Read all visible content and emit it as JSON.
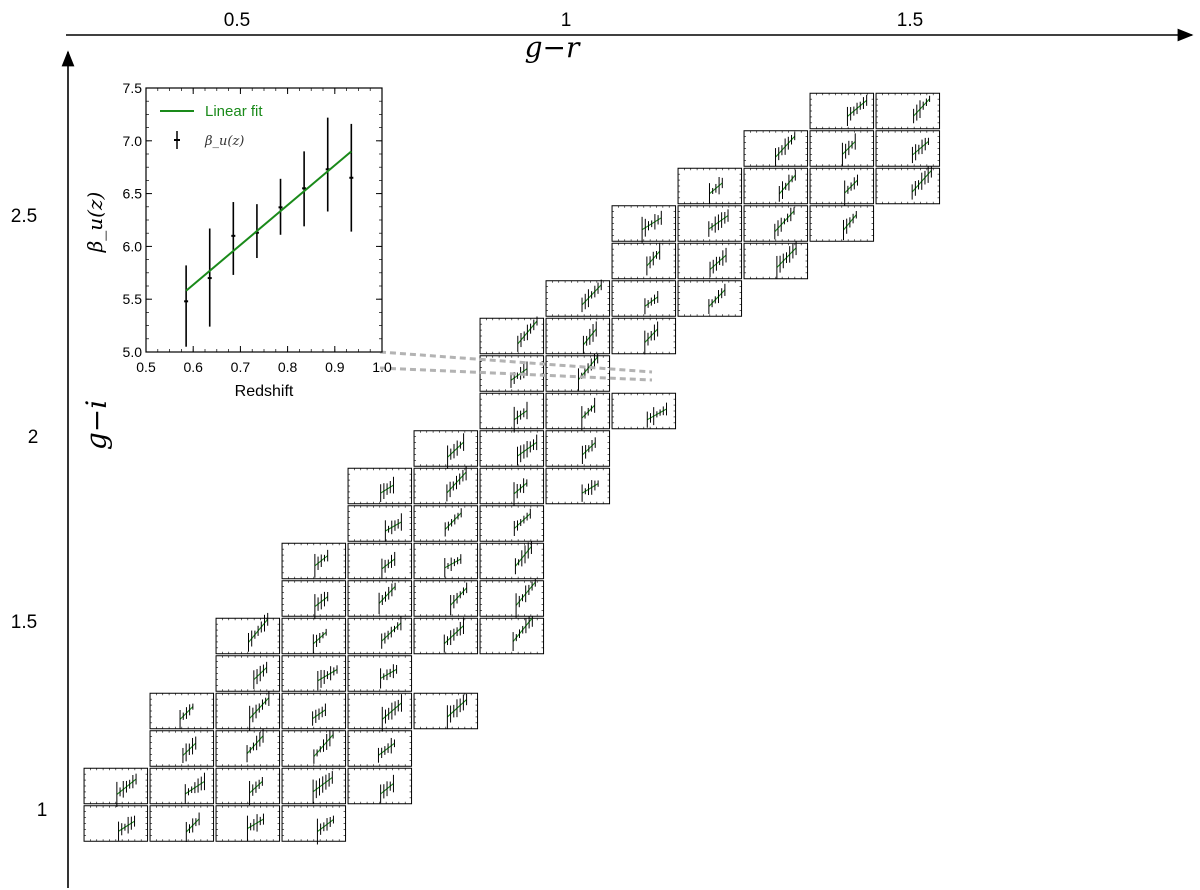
{
  "chart_data": [
    {
      "type": "grid-of-small-multiples",
      "x_axis": {
        "label": "g−r",
        "position": "top",
        "ticks": [
          "0.5",
          "1",
          "1.5"
        ]
      },
      "y_axis": {
        "label": "g−i",
        "position": "left",
        "ticks": [
          "1",
          "1.5",
          "2",
          "2.5"
        ]
      },
      "panel_color_grid": {
        "row_g_i_start": 0.98,
        "row_g_i_step": 0.1,
        "rows": [
          {
            "g_r_start": 0.28,
            "count": 4
          },
          {
            "g_r_start": 0.28,
            "count": 5
          },
          {
            "g_r_start": 0.38,
            "count": 4
          },
          {
            "g_r_start": 0.38,
            "count": 5
          },
          {
            "g_r_start": 0.48,
            "count": 3
          },
          {
            "g_r_start": 0.48,
            "count": 5
          },
          {
            "g_r_start": 0.58,
            "count": 4
          },
          {
            "g_r_start": 0.58,
            "count": 4
          },
          {
            "g_r_start": 0.68,
            "count": 3
          },
          {
            "g_r_start": 0.68,
            "count": 4
          },
          {
            "g_r_start": 0.78,
            "count": 3
          },
          {
            "g_r_start": 0.88,
            "count": 3
          },
          {
            "g_r_start": 0.88,
            "count": 2
          },
          {
            "g_r_start": 0.88,
            "count": 3
          },
          {
            "g_r_start": 0.98,
            "count": 3
          },
          {
            "g_r_start": 1.08,
            "count": 3
          },
          {
            "g_r_start": 1.08,
            "count": 4
          },
          {
            "g_r_start": 1.18,
            "count": 4
          },
          {
            "g_r_start": 1.28,
            "count": 3
          },
          {
            "g_r_start": 1.38,
            "count": 2
          }
        ]
      }
    },
    {
      "type": "line",
      "role": "inset",
      "xlabel": "Redshift",
      "ylabel": "β_u(z)",
      "xlim": [
        0.5,
        1.0
      ],
      "ylim": [
        5.0,
        7.5
      ],
      "x_ticks": [
        "0.5",
        "0.6",
        "0.7",
        "0.8",
        "0.9",
        "1.0"
      ],
      "y_ticks": [
        "5.0",
        "5.5",
        "6.0",
        "6.5",
        "7.0",
        "7.5"
      ],
      "legend_position": "top-left",
      "series": [
        {
          "name": "Linear fit",
          "kind": "line",
          "color": "#1a8a1a",
          "x": [
            0.585,
            0.935
          ],
          "y": [
            5.58,
            6.9
          ]
        },
        {
          "name": "β_u(z)",
          "kind": "errorbar",
          "color": "#000000",
          "x": [
            0.585,
            0.635,
            0.685,
            0.735,
            0.785,
            0.835,
            0.885,
            0.935
          ],
          "y": [
            5.48,
            5.7,
            6.1,
            6.13,
            6.37,
            6.55,
            6.73,
            6.65
          ],
          "yerr_low": [
            5.05,
            5.24,
            5.73,
            5.89,
            6.11,
            6.19,
            6.33,
            6.14
          ],
          "yerr_high": [
            5.82,
            6.17,
            6.42,
            6.4,
            6.64,
            6.9,
            7.22,
            7.16
          ]
        }
      ]
    }
  ]
}
